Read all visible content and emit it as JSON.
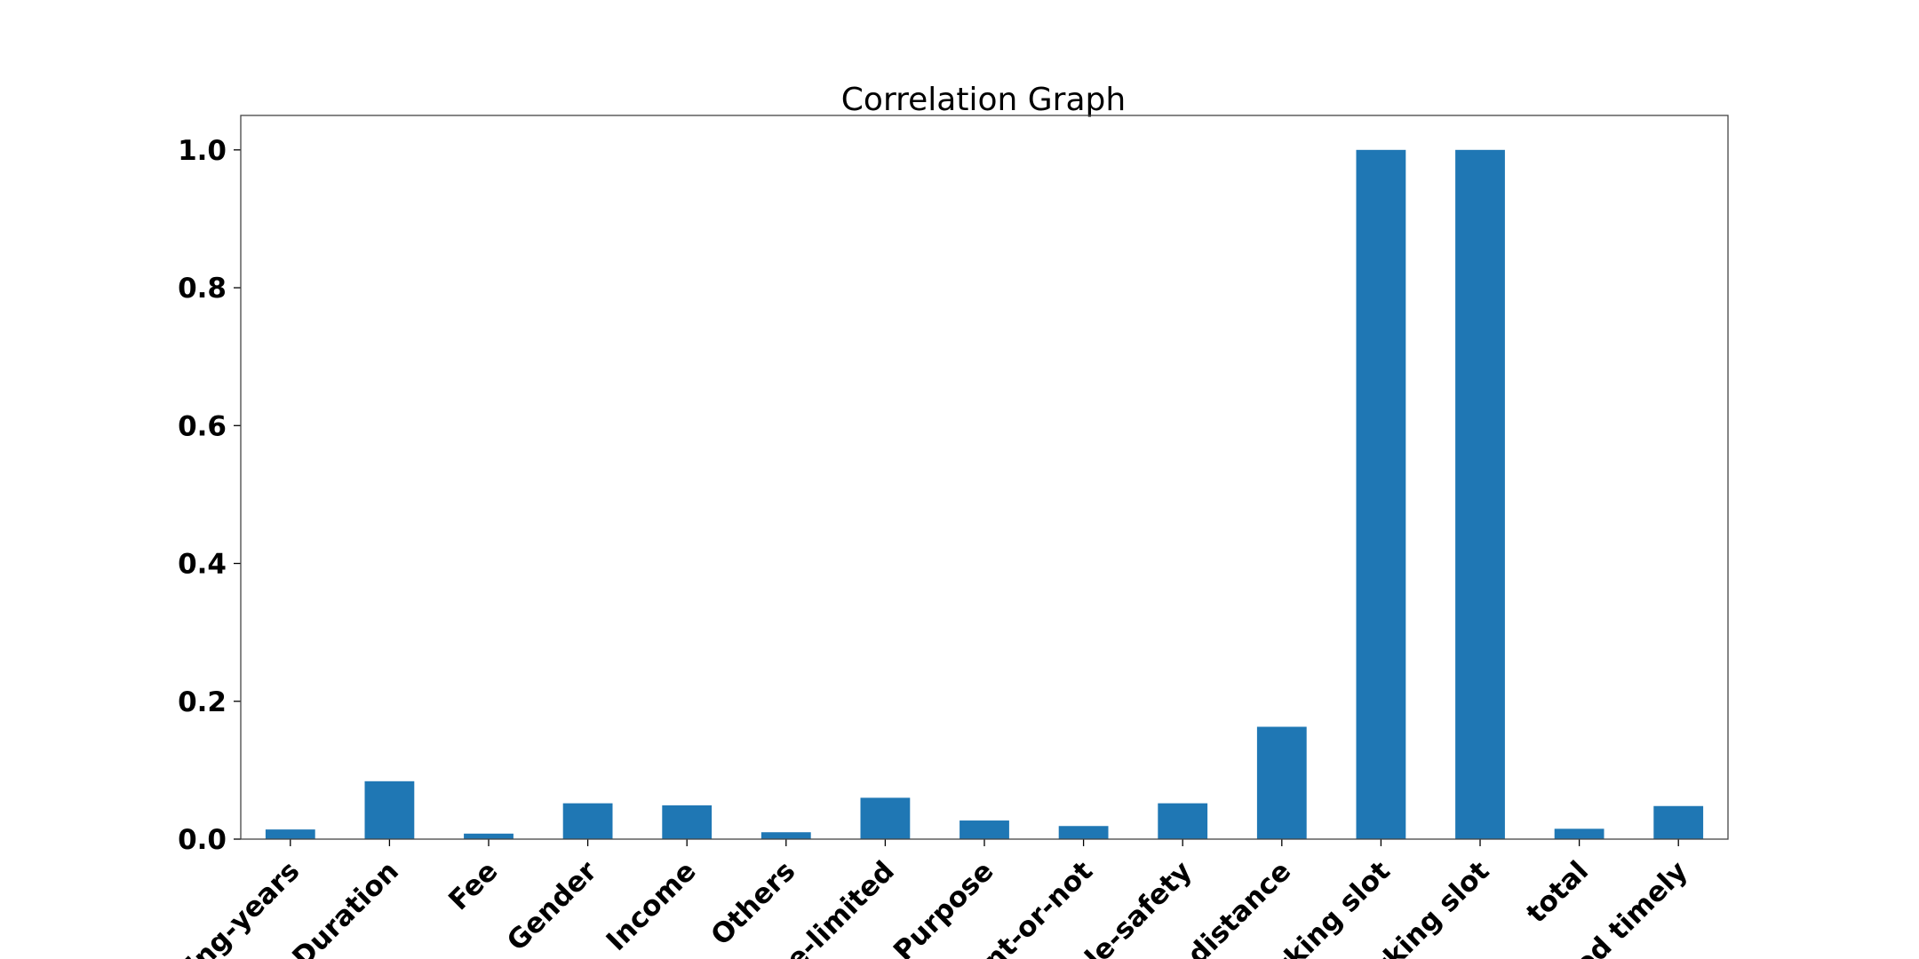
{
  "chart_data": {
    "type": "bar",
    "title": "Correlation Graph",
    "xlabel": "",
    "ylabel": "",
    "categories": [
      "ving-years",
      "Duration",
      "Fee",
      "Gender",
      "Income",
      "Others",
      "me-limited",
      "Purpose",
      "nt-or-not",
      "icle-safety",
      "g-distance",
      "arking slot",
      "arking slot",
      "total",
      "sed timely"
    ],
    "values": [
      0.014,
      0.084,
      0.008,
      0.052,
      0.049,
      0.01,
      0.06,
      0.027,
      0.019,
      0.052,
      0.163,
      1.0,
      1.0,
      0.015,
      0.048
    ],
    "yticks": [
      "0.0",
      "0.2",
      "0.4",
      "0.6",
      "0.8",
      "1.0"
    ],
    "ylim": [
      0,
      1.05
    ],
    "bar_color": "#1f77b4",
    "grid": false,
    "legend": "none"
  }
}
